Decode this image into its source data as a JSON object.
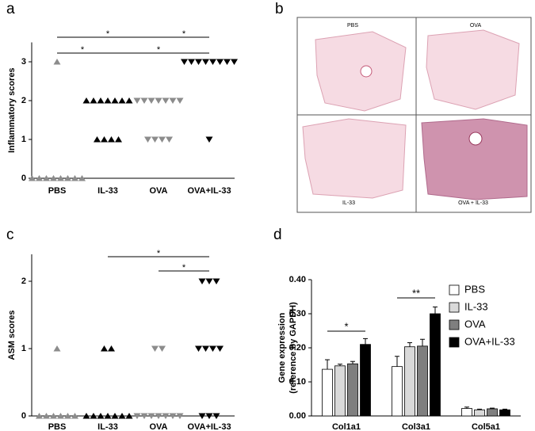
{
  "chart_data": [
    {
      "type": "strip",
      "panel": "a",
      "ylabel": "Inflammatory scores",
      "ylim": [
        0,
        3.5
      ],
      "yticks": [
        0,
        1,
        2,
        3
      ],
      "groups": [
        {
          "name": "PBS",
          "color": "#8c8c8c",
          "marker": "up",
          "values": [
            3,
            0,
            0,
            0,
            0,
            0,
            0,
            0,
            0
          ]
        },
        {
          "name": "IL-33",
          "color": "#000000",
          "marker": "up",
          "values": [
            2,
            2,
            2,
            2,
            2,
            2,
            2,
            1,
            1,
            1,
            1
          ]
        },
        {
          "name": "OVA",
          "color": "#8c8c8c",
          "marker": "down",
          "values": [
            2,
            2,
            2,
            2,
            2,
            2,
            2,
            1,
            1,
            1,
            1
          ]
        },
        {
          "name": "OVA+IL-33",
          "color": "#000000",
          "marker": "down",
          "values": [
            3,
            3,
            3,
            3,
            3,
            3,
            3,
            3,
            1
          ]
        }
      ],
      "significance": [
        "*",
        "*",
        "*",
        "*"
      ]
    },
    {
      "type": "strip",
      "panel": "c",
      "ylabel": "ASM scores",
      "ylim": [
        0,
        2.4
      ],
      "yticks": [
        0,
        1,
        2
      ],
      "groups": [
        {
          "name": "PBS",
          "color": "#8c8c8c",
          "marker": "up",
          "values": [
            1,
            0,
            0,
            0,
            0,
            0,
            0
          ]
        },
        {
          "name": "IL-33",
          "color": "#000000",
          "marker": "up",
          "values": [
            1,
            1,
            0,
            0,
            0,
            0,
            0,
            0,
            0
          ]
        },
        {
          "name": "OVA",
          "color": "#8c8c8c",
          "marker": "down",
          "values": [
            1,
            1,
            0,
            0,
            0,
            0,
            0,
            0,
            0
          ]
        },
        {
          "name": "OVA+IL-33",
          "color": "#000000",
          "marker": "down",
          "values": [
            2,
            2,
            2,
            1,
            1,
            1,
            1,
            0,
            0,
            0
          ]
        }
      ],
      "significance": [
        "*",
        "*"
      ]
    },
    {
      "type": "bar",
      "panel": "d",
      "ylabel": [
        "Gene expression",
        "(reference by GAPDH)"
      ],
      "categories": [
        "Col1a1",
        "Col3a1",
        "Col5a1"
      ],
      "ylim": [
        0,
        0.4
      ],
      "yticks": [
        {
          "value": 0,
          "label": "0.00"
        },
        {
          "value": 0.1,
          "label": "0.10"
        },
        {
          "value": 0.2,
          "label": "0.20"
        },
        {
          "value": 0.3,
          "label": "0.30"
        },
        {
          "value": 0.4,
          "label": "0.40"
        }
      ],
      "series": [
        {
          "name": "PBS",
          "color": "#ffffff",
          "values": [
            0.137,
            0.145,
            0.022
          ],
          "errors": [
            0.028,
            0.03,
            0.004
          ]
        },
        {
          "name": "IL-33",
          "color": "#d9d9d9",
          "values": [
            0.147,
            0.203,
            0.018
          ],
          "errors": [
            0.005,
            0.012,
            0.002
          ]
        },
        {
          "name": "OVA",
          "color": "#7f7f7f",
          "values": [
            0.153,
            0.205,
            0.021
          ],
          "errors": [
            0.007,
            0.02,
            0.002
          ]
        },
        {
          "name": "OVA+IL-33",
          "color": "#000000",
          "values": [
            0.21,
            0.3,
            0.018
          ],
          "errors": [
            0.017,
            0.02,
            0.002
          ]
        }
      ],
      "significance": [
        "*",
        "**"
      ]
    }
  ],
  "histology": {
    "panel": "b",
    "labels": [
      "PBS",
      "OVA",
      "IL-33",
      "OVA + IL-33"
    ]
  }
}
